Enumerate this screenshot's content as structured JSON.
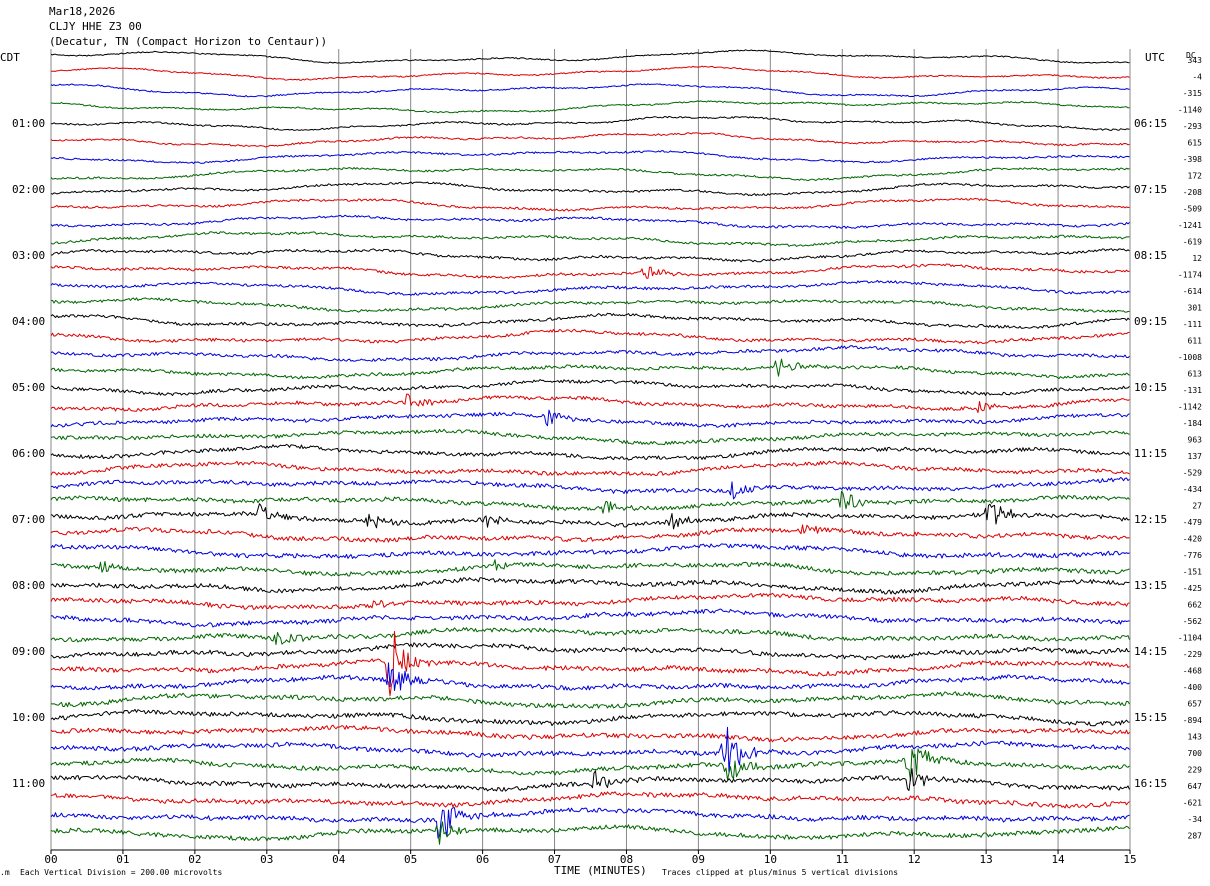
{
  "header": {
    "date": "Mar18,2026",
    "station": "CLJY HHE Z3 00",
    "location": "(Decatur, TN (Compact Horizon to Centaur))"
  },
  "labels": {
    "left_tz": "CDT",
    "right_tz": "UTC",
    "dc": "DC",
    "xlabel": "TIME (MINUTES)",
    "vertical_division": "Each Vertical Division =  200.00 microvolts",
    "clipping": "Traces clipped at plus/minus 5 vertical divisions"
  },
  "colors": [
    "#000000",
    "#dd0000",
    "#0000dd",
    "#006600"
  ],
  "chart_data": {
    "type": "line",
    "title": "CLJY HHE Z3 00",
    "xlabel": "TIME (MINUTES)",
    "xlim": [
      0,
      15
    ],
    "x_ticks": [
      "00",
      "01",
      "02",
      "03",
      "04",
      "05",
      "06",
      "07",
      "08",
      "09",
      "10",
      "11",
      "12",
      "13",
      "14",
      "15"
    ],
    "left_time_labels": [
      "01:00",
      "02:00",
      "03:00",
      "04:00",
      "05:00",
      "06:00",
      "07:00",
      "08:00",
      "09:00",
      "10:00",
      "11:00"
    ],
    "right_time_labels": [
      "06:15",
      "07:15",
      "08:15",
      "09:15",
      "10:15",
      "11:15",
      "12:15",
      "13:15",
      "14:15",
      "15:15",
      "16:15"
    ],
    "trace_count": 48,
    "traces_per_hour": 4,
    "minutes_per_trace": 15,
    "vertical_division_microvolts": 200,
    "dc_offsets": [
      343,
      -4,
      -315,
      -1140,
      -293,
      615,
      -398,
      172,
      -208,
      -509,
      -1241,
      -619,
      12,
      -1174,
      -614,
      301,
      -111,
      611,
      -1008,
      613,
      -131,
      -1142,
      -184,
      963,
      137,
      -529,
      -434,
      27,
      -479,
      -420,
      -776,
      -151,
      -425,
      662,
      -562,
      -1104,
      -229,
      -468,
      -400,
      657,
      -894,
      143,
      700,
      229,
      647,
      -621,
      -34,
      287
    ],
    "events": [
      {
        "trace": 37,
        "minute": 4.7,
        "amp": 2.6
      },
      {
        "trace": 38,
        "minute": 4.7,
        "amp": 1.6
      },
      {
        "trace": 42,
        "minute": 9.35,
        "amp": 2.2
      },
      {
        "trace": 43,
        "minute": 9.4,
        "amp": 1.4
      },
      {
        "trace": 43,
        "minute": 11.9,
        "amp": 1.8
      },
      {
        "trace": 44,
        "minute": 11.9,
        "amp": 1.0
      },
      {
        "trace": 46,
        "minute": 5.4,
        "amp": 1.8
      },
      {
        "trace": 47,
        "minute": 5.4,
        "amp": 1.0
      },
      {
        "trace": 28,
        "minute": 2.9,
        "amp": 0.7
      },
      {
        "trace": 28,
        "minute": 4.4,
        "amp": 0.9
      },
      {
        "trace": 28,
        "minute": 6.0,
        "amp": 0.7
      },
      {
        "trace": 28,
        "minute": 8.6,
        "amp": 0.7
      },
      {
        "trace": 28,
        "minute": 13.0,
        "amp": 1.1
      },
      {
        "trace": 27,
        "minute": 7.7,
        "amp": 0.7
      },
      {
        "trace": 27,
        "minute": 11.0,
        "amp": 0.9
      },
      {
        "trace": 26,
        "minute": 9.45,
        "amp": 0.7
      },
      {
        "trace": 22,
        "minute": 6.9,
        "amp": 0.6
      },
      {
        "trace": 21,
        "minute": 4.95,
        "amp": 0.6
      },
      {
        "trace": 21,
        "minute": 12.9,
        "amp": 0.5
      },
      {
        "trace": 19,
        "minute": 10.1,
        "amp": 0.7
      },
      {
        "trace": 35,
        "minute": 3.1,
        "amp": 0.8
      },
      {
        "trace": 44,
        "minute": 7.55,
        "amp": 0.8
      },
      {
        "trace": 31,
        "minute": 0.7,
        "amp": 0.5
      },
      {
        "trace": 31,
        "minute": 6.2,
        "amp": 0.6
      },
      {
        "trace": 13,
        "minute": 8.25,
        "amp": 0.5
      },
      {
        "trace": 29,
        "minute": 10.4,
        "amp": 0.5
      },
      {
        "trace": 33,
        "minute": 4.5,
        "amp": 0.4
      }
    ]
  }
}
